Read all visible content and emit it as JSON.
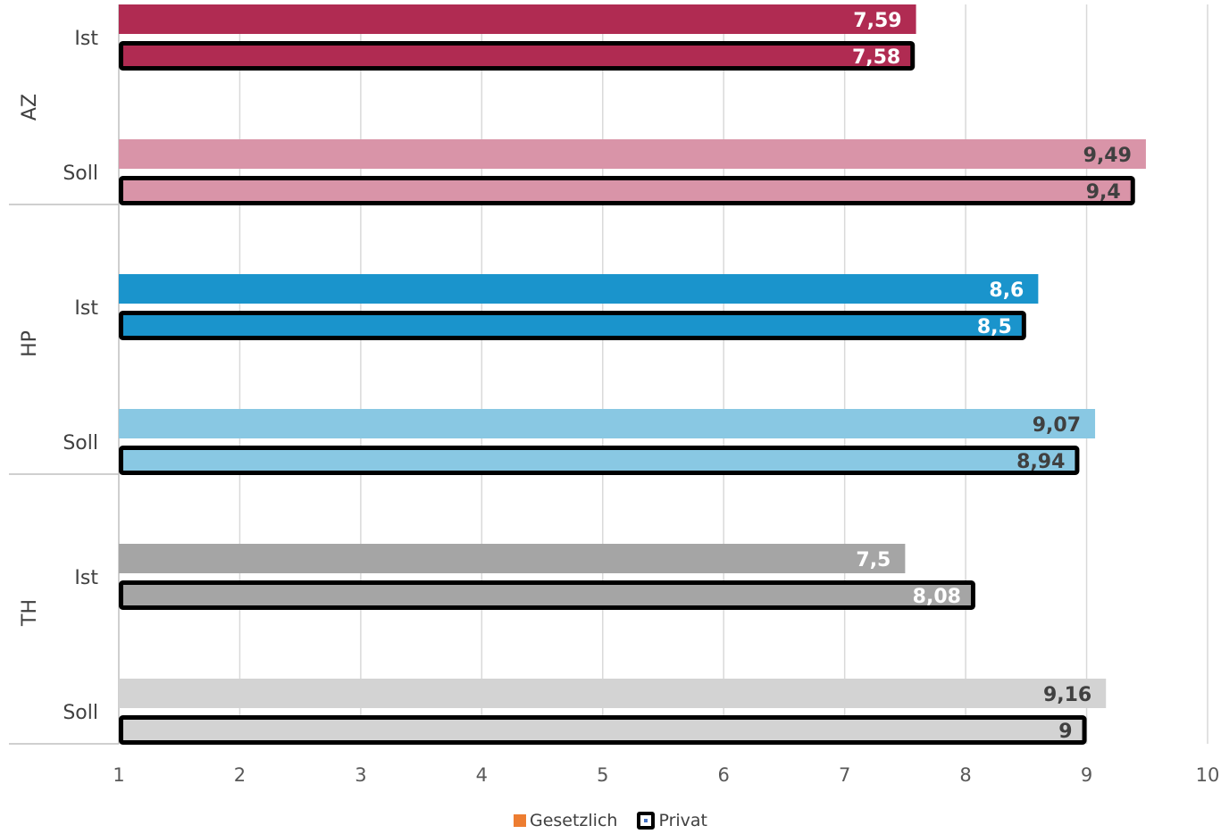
{
  "chart_data": {
    "type": "bar",
    "orientation": "horizontal",
    "xlim": [
      1,
      10
    ],
    "x_ticks": [
      "1",
      "2",
      "3",
      "4",
      "5",
      "6",
      "7",
      "8",
      "9",
      "10"
    ],
    "grid": true,
    "legend_position": "bottom",
    "groups": [
      {
        "name": "AZ",
        "rows": [
          {
            "label": "Ist",
            "color": "#b02b52",
            "label_color": "#ffffff",
            "values": [
              7.59,
              7.58
            ],
            "labels": [
              "7,59",
              "7,58"
            ]
          },
          {
            "label": "Soll",
            "color": "#d994a8",
            "label_color": "#404040",
            "values": [
              9.49,
              9.4
            ],
            "labels": [
              "9,49",
              "9,4"
            ]
          }
        ]
      },
      {
        "name": "HP",
        "rows": [
          {
            "label": "Ist",
            "color": "#1a94cc",
            "label_color": "#ffffff",
            "values": [
              8.6,
              8.5
            ],
            "labels": [
              "8,6",
              "8,5"
            ]
          },
          {
            "label": "Soll",
            "color": "#89c8e3",
            "label_color": "#404040",
            "values": [
              9.07,
              8.94
            ],
            "labels": [
              "9,07",
              "8,94"
            ]
          }
        ]
      },
      {
        "name": "TH",
        "rows": [
          {
            "label": "Ist",
            "color": "#a5a5a5",
            "label_color": "#ffffff",
            "values": [
              7.5,
              8.08
            ],
            "labels": [
              "7,5",
              "8,08"
            ]
          },
          {
            "label": "Soll",
            "color": "#d3d3d3",
            "label_color": "#404040",
            "values": [
              9.16,
              9
            ],
            "labels": [
              "9,16",
              "9"
            ]
          }
        ]
      }
    ],
    "series": [
      {
        "name": "Gesetzlich",
        "color": "#ed7d31"
      },
      {
        "name": "Privat",
        "outline": "#000000"
      }
    ]
  },
  "legend": {
    "gesetzlich": "Gesetzlich",
    "privat": "Privat"
  }
}
